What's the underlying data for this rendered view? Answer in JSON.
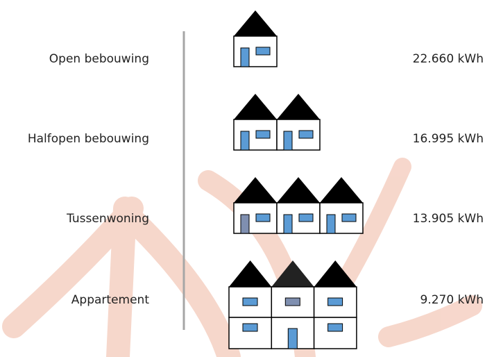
{
  "rows": [
    {
      "label": "Open bebouwing",
      "value": "22.660 kWh"
    },
    {
      "label": "Halfopen bebouwing",
      "value": "16.995 kWh"
    },
    {
      "label": "Tussenwoning",
      "value": "13.905 kWh"
    },
    {
      "label": "Appartement",
      "value": "9.270 kWh"
    }
  ]
}
